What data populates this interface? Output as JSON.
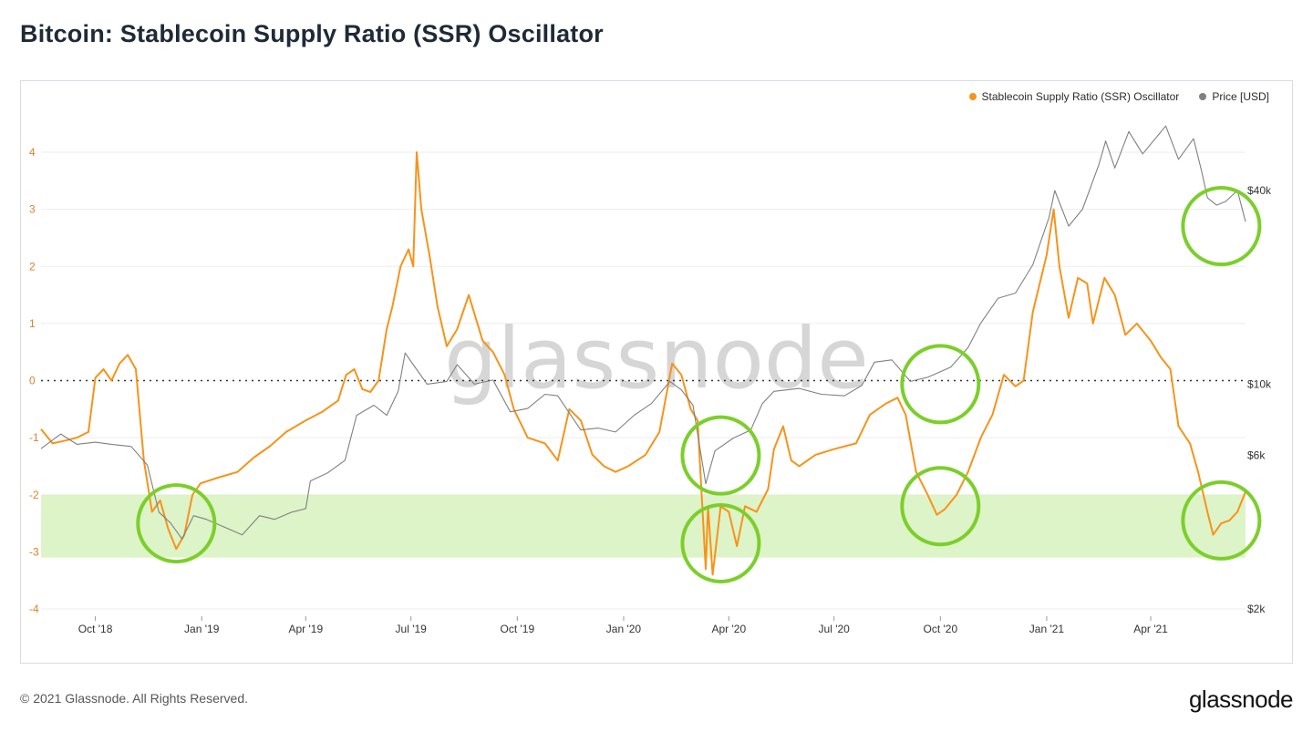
{
  "page": {
    "title": "Bitcoin: Stablecoin Supply Ratio (SSR) Oscillator",
    "footer": "© 2021 Glassnode. All Rights Reserved.",
    "brand": "glassnode",
    "watermark": "glassnode"
  },
  "legend": [
    {
      "label": "Stablecoin Supply Ratio (SSR) Oscillator",
      "color": "#f7931a"
    },
    {
      "label": "Price [USD]",
      "color": "#808080"
    }
  ],
  "chart_data": {
    "type": "line",
    "title": "Bitcoin: Stablecoin Supply Ratio (SSR) Oscillator",
    "x_range": [
      "2018-08-15",
      "2021-06-22"
    ],
    "x_ticks": [
      "Oct '18",
      "Jan '19",
      "Apr '19",
      "Jul '19",
      "Oct '19",
      "Jan '20",
      "Apr '20",
      "Jul '20",
      "Oct '20",
      "Jan '21",
      "Apr '21"
    ],
    "y_left": {
      "ticks": [
        "4",
        "3",
        "2",
        "1",
        "0",
        "-1",
        "-2",
        "-3",
        "-4"
      ],
      "range": [
        -4,
        4.3
      ]
    },
    "y_right": {
      "ticks": [
        "$40k",
        "$10k",
        "$6k",
        "$2k"
      ],
      "scale": "log",
      "range": [
        2000,
        60000
      ]
    },
    "zero_line": "dotted",
    "highlight_band": {
      "from": -3.1,
      "to": -2.0,
      "color": "#ddf3c8"
    },
    "circles_color": "#7ccf2b",
    "series": [
      {
        "name": "Stablecoin Supply Ratio (SSR) Oscillator",
        "color": "#f7931a",
        "axis": "left",
        "points": [
          [
            "2018-08-15",
            -0.85
          ],
          [
            "2018-08-25",
            -1.1
          ],
          [
            "2018-09-05",
            -1.05
          ],
          [
            "2018-09-15",
            -1.0
          ],
          [
            "2018-09-25",
            -0.9
          ],
          [
            "2018-10-01",
            0.05
          ],
          [
            "2018-10-08",
            0.2
          ],
          [
            "2018-10-15",
            0.0
          ],
          [
            "2018-10-22",
            0.3
          ],
          [
            "2018-10-29",
            0.45
          ],
          [
            "2018-11-05",
            0.2
          ],
          [
            "2018-11-12",
            -1.4
          ],
          [
            "2018-11-19",
            -2.3
          ],
          [
            "2018-11-26",
            -2.1
          ],
          [
            "2018-12-03",
            -2.6
          ],
          [
            "2018-12-10",
            -2.95
          ],
          [
            "2018-12-17",
            -2.7
          ],
          [
            "2018-12-24",
            -2.0
          ],
          [
            "2018-12-31",
            -1.8
          ],
          [
            "2019-01-15",
            -1.7
          ],
          [
            "2019-02-01",
            -1.6
          ],
          [
            "2019-02-15",
            -1.35
          ],
          [
            "2019-03-01",
            -1.15
          ],
          [
            "2019-03-15",
            -0.9
          ],
          [
            "2019-04-01",
            -0.7
          ],
          [
            "2019-04-15",
            -0.55
          ],
          [
            "2019-04-29",
            -0.35
          ],
          [
            "2019-05-06",
            0.1
          ],
          [
            "2019-05-13",
            0.2
          ],
          [
            "2019-05-20",
            -0.15
          ],
          [
            "2019-05-27",
            -0.2
          ],
          [
            "2019-06-03",
            0.0
          ],
          [
            "2019-06-10",
            0.9
          ],
          [
            "2019-06-15",
            1.3
          ],
          [
            "2019-06-22",
            2.0
          ],
          [
            "2019-06-29",
            2.3
          ],
          [
            "2019-07-03",
            2.0
          ],
          [
            "2019-07-06",
            4.0
          ],
          [
            "2019-07-10",
            3.0
          ],
          [
            "2019-07-17",
            2.2
          ],
          [
            "2019-07-24",
            1.3
          ],
          [
            "2019-08-01",
            0.6
          ],
          [
            "2019-08-10",
            0.9
          ],
          [
            "2019-08-20",
            1.5
          ],
          [
            "2019-09-01",
            0.7
          ],
          [
            "2019-09-10",
            0.5
          ],
          [
            "2019-09-20",
            0.1
          ],
          [
            "2019-09-28",
            -0.5
          ],
          [
            "2019-10-10",
            -1.0
          ],
          [
            "2019-10-25",
            -1.1
          ],
          [
            "2019-11-05",
            -1.4
          ],
          [
            "2019-11-15",
            -0.5
          ],
          [
            "2019-11-25",
            -0.7
          ],
          [
            "2019-12-05",
            -1.3
          ],
          [
            "2019-12-15",
            -1.5
          ],
          [
            "2019-12-25",
            -1.6
          ],
          [
            "2020-01-05",
            -1.5
          ],
          [
            "2020-01-20",
            -1.3
          ],
          [
            "2020-02-01",
            -0.9
          ],
          [
            "2020-02-12",
            0.3
          ],
          [
            "2020-02-20",
            0.1
          ],
          [
            "2020-02-28",
            -0.5
          ],
          [
            "2020-03-05",
            -0.7
          ],
          [
            "2020-03-12",
            -3.3
          ],
          [
            "2020-03-14",
            -2.2
          ],
          [
            "2020-03-18",
            -3.4
          ],
          [
            "2020-03-25",
            -2.2
          ],
          [
            "2020-04-01",
            -2.3
          ],
          [
            "2020-04-08",
            -2.9
          ],
          [
            "2020-04-15",
            -2.2
          ],
          [
            "2020-04-25",
            -2.3
          ],
          [
            "2020-05-05",
            -1.9
          ],
          [
            "2020-05-10",
            -1.2
          ],
          [
            "2020-05-18",
            -0.8
          ],
          [
            "2020-05-25",
            -1.4
          ],
          [
            "2020-06-01",
            -1.5
          ],
          [
            "2020-06-15",
            -1.3
          ],
          [
            "2020-07-01",
            -1.2
          ],
          [
            "2020-07-20",
            -1.1
          ],
          [
            "2020-08-01",
            -0.6
          ],
          [
            "2020-08-15",
            -0.4
          ],
          [
            "2020-08-25",
            -0.3
          ],
          [
            "2020-09-01",
            -0.6
          ],
          [
            "2020-09-10",
            -1.6
          ],
          [
            "2020-09-20",
            -2.0
          ],
          [
            "2020-09-28",
            -2.35
          ],
          [
            "2020-10-05",
            -2.25
          ],
          [
            "2020-10-15",
            -2.0
          ],
          [
            "2020-10-25",
            -1.6
          ],
          [
            "2020-11-05",
            -1.0
          ],
          [
            "2020-11-15",
            -0.6
          ],
          [
            "2020-11-25",
            0.1
          ],
          [
            "2020-12-05",
            -0.1
          ],
          [
            "2020-12-12",
            0.0
          ],
          [
            "2020-12-20",
            1.2
          ],
          [
            "2021-01-01",
            2.2
          ],
          [
            "2021-01-07",
            3.0
          ],
          [
            "2021-01-12",
            2.0
          ],
          [
            "2021-01-20",
            1.1
          ],
          [
            "2021-01-28",
            1.8
          ],
          [
            "2021-02-05",
            1.7
          ],
          [
            "2021-02-10",
            1.0
          ],
          [
            "2021-02-20",
            1.8
          ],
          [
            "2021-03-01",
            1.5
          ],
          [
            "2021-03-10",
            0.8
          ],
          [
            "2021-03-20",
            1.0
          ],
          [
            "2021-04-01",
            0.7
          ],
          [
            "2021-04-10",
            0.4
          ],
          [
            "2021-04-18",
            0.2
          ],
          [
            "2021-04-25",
            -0.8
          ],
          [
            "2021-05-05",
            -1.1
          ],
          [
            "2021-05-12",
            -1.6
          ],
          [
            "2021-05-20",
            -2.3
          ],
          [
            "2021-05-25",
            -2.7
          ],
          [
            "2021-06-01",
            -2.5
          ],
          [
            "2021-06-08",
            -2.45
          ],
          [
            "2021-06-15",
            -2.3
          ],
          [
            "2021-06-22",
            -1.95
          ]
        ]
      },
      {
        "name": "Price [USD]",
        "color": "#808080",
        "axis": "right",
        "points": [
          [
            "2018-08-15",
            6300
          ],
          [
            "2018-09-01",
            7000
          ],
          [
            "2018-09-15",
            6500
          ],
          [
            "2018-10-01",
            6600
          ],
          [
            "2018-10-15",
            6500
          ],
          [
            "2018-11-01",
            6400
          ],
          [
            "2018-11-15",
            5600
          ],
          [
            "2018-11-25",
            4000
          ],
          [
            "2018-12-05",
            3700
          ],
          [
            "2018-12-15",
            3300
          ],
          [
            "2018-12-25",
            3900
          ],
          [
            "2019-01-05",
            3800
          ],
          [
            "2019-01-20",
            3600
          ],
          [
            "2019-02-05",
            3400
          ],
          [
            "2019-02-20",
            3900
          ],
          [
            "2019-03-05",
            3800
          ],
          [
            "2019-03-20",
            4000
          ],
          [
            "2019-04-01",
            4100
          ],
          [
            "2019-04-05",
            5000
          ],
          [
            "2019-04-20",
            5300
          ],
          [
            "2019-05-05",
            5800
          ],
          [
            "2019-05-15",
            8000
          ],
          [
            "2019-05-30",
            8600
          ],
          [
            "2019-06-10",
            8000
          ],
          [
            "2019-06-20",
            9500
          ],
          [
            "2019-06-26",
            12500
          ],
          [
            "2019-07-03",
            11500
          ],
          [
            "2019-07-15",
            10000
          ],
          [
            "2019-08-01",
            10200
          ],
          [
            "2019-08-10",
            11500
          ],
          [
            "2019-08-25",
            10000
          ],
          [
            "2019-09-10",
            10300
          ],
          [
            "2019-09-25",
            8200
          ],
          [
            "2019-10-10",
            8400
          ],
          [
            "2019-10-25",
            9300
          ],
          [
            "2019-11-05",
            9200
          ],
          [
            "2019-11-25",
            7200
          ],
          [
            "2019-12-10",
            7300
          ],
          [
            "2019-12-25",
            7100
          ],
          [
            "2020-01-10",
            8000
          ],
          [
            "2020-01-25",
            8700
          ],
          [
            "2020-02-10",
            10200
          ],
          [
            "2020-02-20",
            9600
          ],
          [
            "2020-03-01",
            8600
          ],
          [
            "2020-03-12",
            4900
          ],
          [
            "2020-03-20",
            6200
          ],
          [
            "2020-04-05",
            6800
          ],
          [
            "2020-04-20",
            7200
          ],
          [
            "2020-04-30",
            8700
          ],
          [
            "2020-05-10",
            9500
          ],
          [
            "2020-06-01",
            9700
          ],
          [
            "2020-06-20",
            9300
          ],
          [
            "2020-07-10",
            9200
          ],
          [
            "2020-07-25",
            9900
          ],
          [
            "2020-08-05",
            11700
          ],
          [
            "2020-08-20",
            11900
          ],
          [
            "2020-09-05",
            10200
          ],
          [
            "2020-09-20",
            10500
          ],
          [
            "2020-10-10",
            11300
          ],
          [
            "2020-10-25",
            13000
          ],
          [
            "2020-11-05",
            15500
          ],
          [
            "2020-11-20",
            18500
          ],
          [
            "2020-12-05",
            19200
          ],
          [
            "2020-12-20",
            23500
          ],
          [
            "2021-01-03",
            33000
          ],
          [
            "2021-01-08",
            40000
          ],
          [
            "2021-01-20",
            31000
          ],
          [
            "2021-02-01",
            35000
          ],
          [
            "2021-02-15",
            48000
          ],
          [
            "2021-02-21",
            57000
          ],
          [
            "2021-03-01",
            47000
          ],
          [
            "2021-03-13",
            61000
          ],
          [
            "2021-03-25",
            52000
          ],
          [
            "2021-04-14",
            63500
          ],
          [
            "2021-04-25",
            50000
          ],
          [
            "2021-05-08",
            58000
          ],
          [
            "2021-05-15",
            46000
          ],
          [
            "2021-05-20",
            38000
          ],
          [
            "2021-05-28",
            36000
          ],
          [
            "2021-06-05",
            37000
          ],
          [
            "2021-06-15",
            40000
          ],
          [
            "2021-06-22",
            32000
          ]
        ]
      }
    ],
    "circled_points": [
      [
        "2018-12-10",
        "left",
        -2.5
      ],
      [
        "2020-03-25",
        "right",
        6000
      ],
      [
        "2020-03-25",
        "left",
        -2.85
      ],
      [
        "2020-10-01",
        "right",
        10000
      ],
      [
        "2020-10-01",
        "left",
        -2.2
      ],
      [
        "2021-06-01",
        "right",
        31000
      ],
      [
        "2021-06-01",
        "left",
        -2.45
      ]
    ]
  }
}
